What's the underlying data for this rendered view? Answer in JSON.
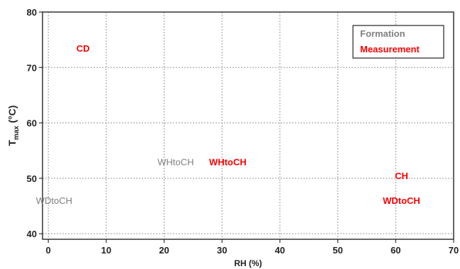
{
  "chart_data": {
    "type": "scatter",
    "title": "",
    "xlabel": "RH (%)",
    "ylabel": {
      "base": "T",
      "subscript": "max",
      "suffix": " (°C)"
    },
    "xlim": [
      -1,
      70
    ],
    "ylim": [
      39,
      80
    ],
    "x_ticks": [
      0,
      10,
      20,
      30,
      40,
      50,
      60,
      70
    ],
    "y_ticks": [
      40,
      50,
      60,
      70,
      80
    ],
    "grid": true,
    "legend": {
      "placement": "top-right",
      "entries": [
        {
          "label": "Formation",
          "color": "#808080"
        },
        {
          "label": "Measurement",
          "color": "#ff0000"
        }
      ]
    },
    "series": [
      {
        "name": "Formation",
        "color": "#808080",
        "points": [
          {
            "label": "WHtoCH",
            "x": 22,
            "y": 53
          },
          {
            "label": "WDtoCH",
            "x": 1,
            "y": 46
          }
        ]
      },
      {
        "name": "Measurement",
        "color": "#ff0000",
        "points": [
          {
            "label": "CD",
            "x": 6,
            "y": 73.5
          },
          {
            "label": "WHtoCH",
            "x": 31,
            "y": 53
          },
          {
            "label": "CH",
            "x": 61,
            "y": 50.5
          },
          {
            "label": "WDtoCH",
            "x": 61,
            "y": 46
          }
        ]
      }
    ]
  }
}
